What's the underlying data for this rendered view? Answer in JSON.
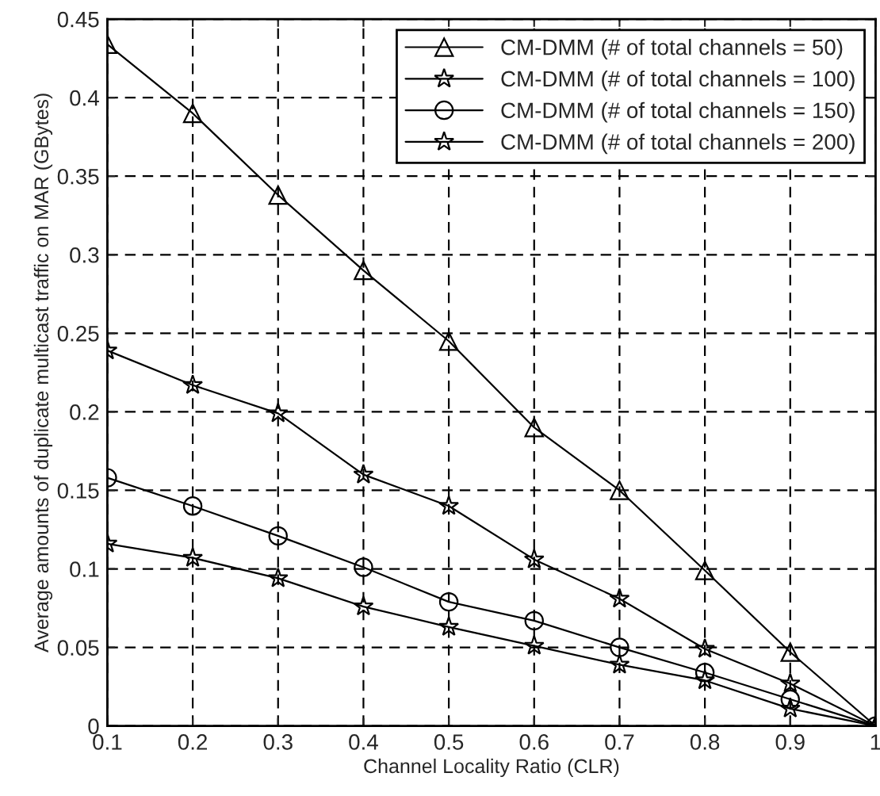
{
  "chart_data": {
    "type": "line",
    "xlabel": "Channel Locality Ratio (CLR)",
    "ylabel": "Average amounts of duplicate multicast traffic on MAR (GBytes)",
    "x": [
      0.1,
      0.2,
      0.3,
      0.4,
      0.5,
      0.6,
      0.7,
      0.8,
      0.9,
      1
    ],
    "series": [
      {
        "name": "CM-DMM (# of total channels = 50)",
        "color": "#000000",
        "marker": "triangle",
        "values": [
          0.434,
          0.39,
          0.338,
          0.29,
          0.245,
          0.19,
          0.15,
          0.099,
          0.047,
          0
        ]
      },
      {
        "name": "CM-DMM (# of total channels = 100)",
        "color": "#000000",
        "marker": "star",
        "values": [
          0.239,
          0.217,
          0.199,
          0.16,
          0.14,
          0.106,
          0.081,
          0.049,
          0.027,
          0
        ]
      },
      {
        "name": "CM-DMM (# of total channels = 150)",
        "color": "#000000",
        "marker": "circle",
        "values": [
          0.158,
          0.14,
          0.121,
          0.101,
          0.079,
          0.067,
          0.05,
          0.034,
          0.017,
          0
        ]
      },
      {
        "name": "CM-DMM (# of total channels = 200)",
        "color": "#000000",
        "marker": "star",
        "values": [
          0.116,
          0.107,
          0.094,
          0.076,
          0.063,
          0.051,
          0.039,
          0.029,
          0.011,
          0
        ]
      }
    ],
    "xlim": [
      0.1,
      1
    ],
    "xticks": [
      0.1,
      0.2,
      0.3,
      0.4,
      0.5,
      0.6,
      0.7,
      0.8,
      0.9,
      1
    ],
    "ylim": [
      0,
      0.45
    ],
    "yticks": [
      0,
      0.05,
      0.1,
      0.15,
      0.2,
      0.25,
      0.3,
      0.35,
      0.4,
      0.45
    ],
    "grid": true,
    "legend": "top right",
    "line_style": "solid"
  }
}
